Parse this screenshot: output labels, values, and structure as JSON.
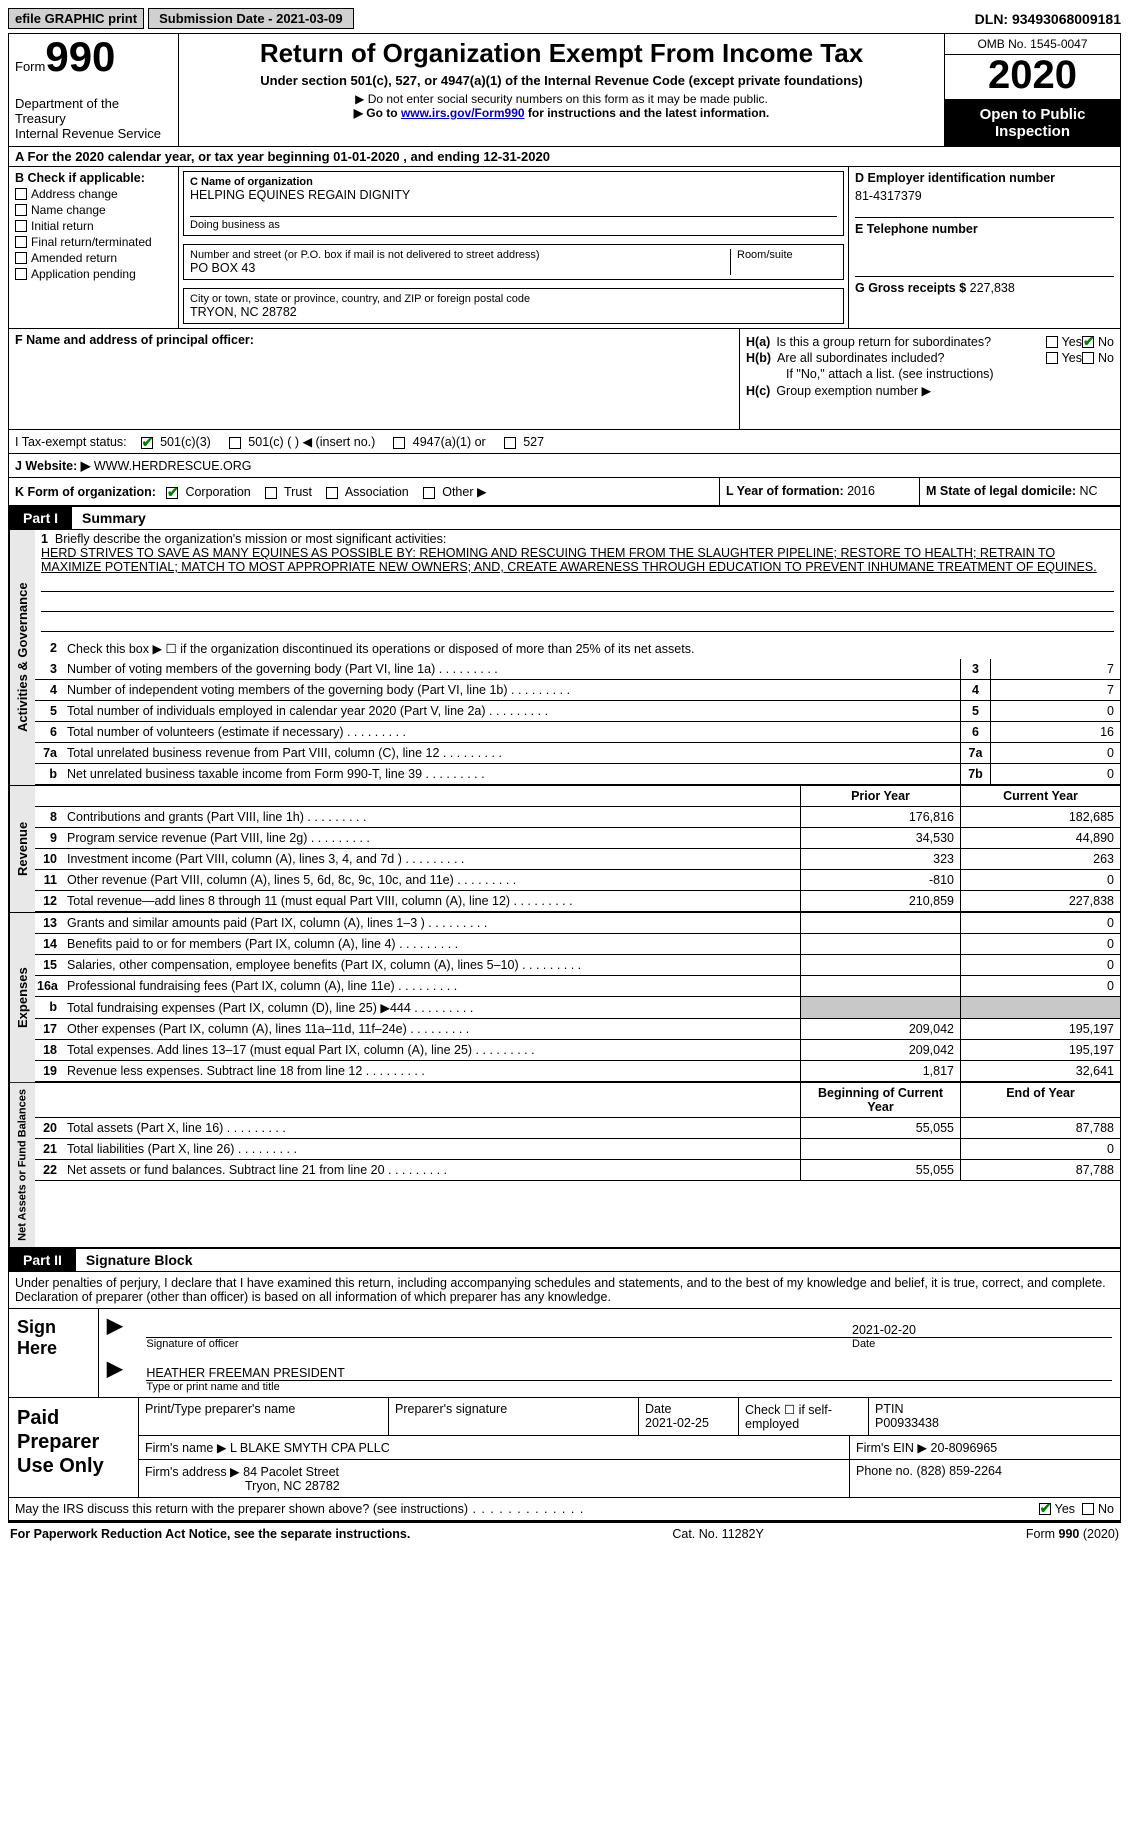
{
  "topbar": {
    "efile": "efile GRAPHIC print",
    "sub": "Submission Date - 2021-03-09",
    "dln": "DLN: 93493068009181"
  },
  "header": {
    "form_word": "Form",
    "form_num": "990",
    "dept": "Department of the Treasury\nInternal Revenue Service",
    "title": "Return of Organization Exempt From Income Tax",
    "sub1": "Under section 501(c), 527, or 4947(a)(1) of the Internal Revenue Code (except private foundations)",
    "sub2": "▶ Do not enter social security numbers on this form as it may be made public.",
    "sub3_pre": "▶ Go to ",
    "sub3_link": "www.irs.gov/Form990",
    "sub3_post": " for instructions and the latest information.",
    "omb": "OMB No. 1545-0047",
    "year": "2020",
    "open": "Open to Public Inspection"
  },
  "row_a": "For the 2020 calendar year, or tax year beginning 01-01-2020    , and ending 12-31-2020",
  "sec_b": {
    "b_label": "B Check if applicable:",
    "checks": [
      "Address change",
      "Name change",
      "Initial return",
      "Final return/terminated",
      "Amended return",
      "Application pending"
    ],
    "c_label": "C Name of organization",
    "org_name": "HELPING EQUINES REGAIN DIGNITY",
    "dba_label": "Doing business as",
    "addr_label": "Number and street (or P.O. box if mail is not delivered to street address)",
    "addr": "PO BOX 43",
    "room_label": "Room/suite",
    "city_label": "City or town, state or province, country, and ZIP or foreign postal code",
    "city": "TRYON, NC  28782",
    "d_label": "D Employer identification number",
    "ein": "81-4317379",
    "e_label": "E Telephone number",
    "g_label": "G Gross receipts $",
    "g_val": "227,838"
  },
  "sec_f": {
    "f_label": "F  Name and address of principal officer:",
    "ha_lab": "H(a)",
    "ha_txt": "Is this a group return for subordinates?",
    "hb_lab": "H(b)",
    "hb_txt": "Are all subordinates included?",
    "hb_note": "If \"No,\" attach a list. (see instructions)",
    "hc_lab": "H(c)",
    "hc_txt": "Group exemption number ▶",
    "yes": "Yes",
    "no": "No"
  },
  "row_i": {
    "label": "I    Tax-exempt status:",
    "opts": [
      "501(c)(3)",
      "501(c) (   ) ◀ (insert no.)",
      "4947(a)(1) or",
      "527"
    ]
  },
  "row_j": {
    "label": "J    Website: ▶",
    "val": "WWW.HERDRESCUE.ORG"
  },
  "row_k": {
    "label": "K Form of organization:",
    "opts": [
      "Corporation",
      "Trust",
      "Association",
      "Other ▶"
    ],
    "l_label": "L Year of formation:",
    "l_val": "2016",
    "m_label": "M State of legal domicile:",
    "m_val": "NC"
  },
  "part1": {
    "tab": "Part I",
    "title": "Summary"
  },
  "mission": {
    "num": "1",
    "lead": "Briefly describe the organization's mission or most significant activities:",
    "text": "HERD STRIVES TO SAVE AS MANY EQUINES AS POSSIBLE BY: REHOMING AND RESCUING THEM FROM THE SLAUGHTER PIPELINE; RESTORE TO HEALTH; RETRAIN TO MAXIMIZE POTENTIAL; MATCH TO MOST APPROPRIATE NEW OWNERS; AND, CREATE AWARENESS THROUGH EDUCATION TO PREVENT INHUMANE TREATMENT OF EQUINES."
  },
  "gov_lines": [
    {
      "n": "2",
      "t": "Check this box ▶ ☐  if the organization discontinued its operations or disposed of more than 25% of its net assets.",
      "box": "",
      "v": ""
    },
    {
      "n": "3",
      "t": "Number of voting members of the governing body (Part VI, line 1a)",
      "box": "3",
      "v": "7"
    },
    {
      "n": "4",
      "t": "Number of independent voting members of the governing body (Part VI, line 1b)",
      "box": "4",
      "v": "7"
    },
    {
      "n": "5",
      "t": "Total number of individuals employed in calendar year 2020 (Part V, line 2a)",
      "box": "5",
      "v": "0"
    },
    {
      "n": "6",
      "t": "Total number of volunteers (estimate if necessary)",
      "box": "6",
      "v": "16"
    },
    {
      "n": "7a",
      "t": "Total unrelated business revenue from Part VIII, column (C), line 12",
      "box": "7a",
      "v": "0"
    },
    {
      "n": "b",
      "t": "Net unrelated business taxable income from Form 990-T, line 39",
      "box": "7b",
      "v": "0"
    }
  ],
  "col_hdrs": {
    "prior": "Prior Year",
    "curr": "Current Year"
  },
  "rev_lines": [
    {
      "n": "8",
      "t": "Contributions and grants (Part VIII, line 1h)",
      "p": "176,816",
      "c": "182,685"
    },
    {
      "n": "9",
      "t": "Program service revenue (Part VIII, line 2g)",
      "p": "34,530",
      "c": "44,890"
    },
    {
      "n": "10",
      "t": "Investment income (Part VIII, column (A), lines 3, 4, and 7d )",
      "p": "323",
      "c": "263"
    },
    {
      "n": "11",
      "t": "Other revenue (Part VIII, column (A), lines 5, 6d, 8c, 9c, 10c, and 11e)",
      "p": "-810",
      "c": "0"
    },
    {
      "n": "12",
      "t": "Total revenue—add lines 8 through 11 (must equal Part VIII, column (A), line 12)",
      "p": "210,859",
      "c": "227,838"
    }
  ],
  "exp_lines": [
    {
      "n": "13",
      "t": "Grants and similar amounts paid (Part IX, column (A), lines 1–3 )",
      "p": "",
      "c": "0"
    },
    {
      "n": "14",
      "t": "Benefits paid to or for members (Part IX, column (A), line 4)",
      "p": "",
      "c": "0"
    },
    {
      "n": "15",
      "t": "Salaries, other compensation, employee benefits (Part IX, column (A), lines 5–10)",
      "p": "",
      "c": "0"
    },
    {
      "n": "16a",
      "t": "Professional fundraising fees (Part IX, column (A), line 11e)",
      "p": "",
      "c": "0"
    },
    {
      "n": "b",
      "t": "Total fundraising expenses (Part IX, column (D), line 25) ▶444",
      "p": "SHADE",
      "c": "SHADE"
    },
    {
      "n": "17",
      "t": "Other expenses (Part IX, column (A), lines 11a–11d, 11f–24e)",
      "p": "209,042",
      "c": "195,197"
    },
    {
      "n": "18",
      "t": "Total expenses. Add lines 13–17 (must equal Part IX, column (A), line 25)",
      "p": "209,042",
      "c": "195,197"
    },
    {
      "n": "19",
      "t": "Revenue less expenses. Subtract line 18 from line 12",
      "p": "1,817",
      "c": "32,641"
    }
  ],
  "na_hdrs": {
    "beg": "Beginning of Current Year",
    "end": "End of Year"
  },
  "na_lines": [
    {
      "n": "20",
      "t": "Total assets (Part X, line 16)",
      "p": "55,055",
      "c": "87,788"
    },
    {
      "n": "21",
      "t": "Total liabilities (Part X, line 26)",
      "p": "",
      "c": "0"
    },
    {
      "n": "22",
      "t": "Net assets or fund balances. Subtract line 21 from line 20",
      "p": "55,055",
      "c": "87,788"
    }
  ],
  "side_labels": {
    "gov": "Activities & Governance",
    "rev": "Revenue",
    "exp": "Expenses",
    "na": "Net Assets or Fund Balances"
  },
  "part2": {
    "tab": "Part II",
    "title": "Signature Block"
  },
  "sig_decl": "Under penalties of perjury, I declare that I have examined this return, including accompanying schedules and statements, and to the best of my knowledge and belief, it is true, correct, and complete. Declaration of preparer (other than officer) is based on all information of which preparer has any knowledge.",
  "sign": {
    "label": "Sign Here",
    "sig_of": "Signature of officer",
    "date_lbl": "Date",
    "date": "2021-02-20",
    "name": "HEATHER FREEMAN PRESIDENT",
    "name_lbl": "Type or print name and title"
  },
  "prep": {
    "label": "Paid Preparer Use Only",
    "h1": "Print/Type preparer's name",
    "h2": "Preparer's signature",
    "h3": "Date",
    "h4": "Check ☐ if self-employed",
    "h5": "PTIN",
    "date": "2021-02-25",
    "ptin": "P00933438",
    "firm_lbl": "Firm's name   ▶",
    "firm": "L BLAKE SMYTH CPA PLLC",
    "ein_lbl": "Firm's EIN ▶",
    "ein": "20-8096965",
    "addr_lbl": "Firm's address ▶",
    "addr1": "84 Pacolet Street",
    "addr2": "Tryon, NC  28782",
    "phone_lbl": "Phone no.",
    "phone": "(828) 859-2264"
  },
  "discuss": {
    "txt": "May the IRS discuss this return with the preparer shown above? (see instructions)",
    "yes": "Yes",
    "no": "No"
  },
  "footer": {
    "left": "For Paperwork Reduction Act Notice, see the separate instructions.",
    "mid": "Cat. No. 11282Y",
    "right": "Form 990 (2020)"
  }
}
